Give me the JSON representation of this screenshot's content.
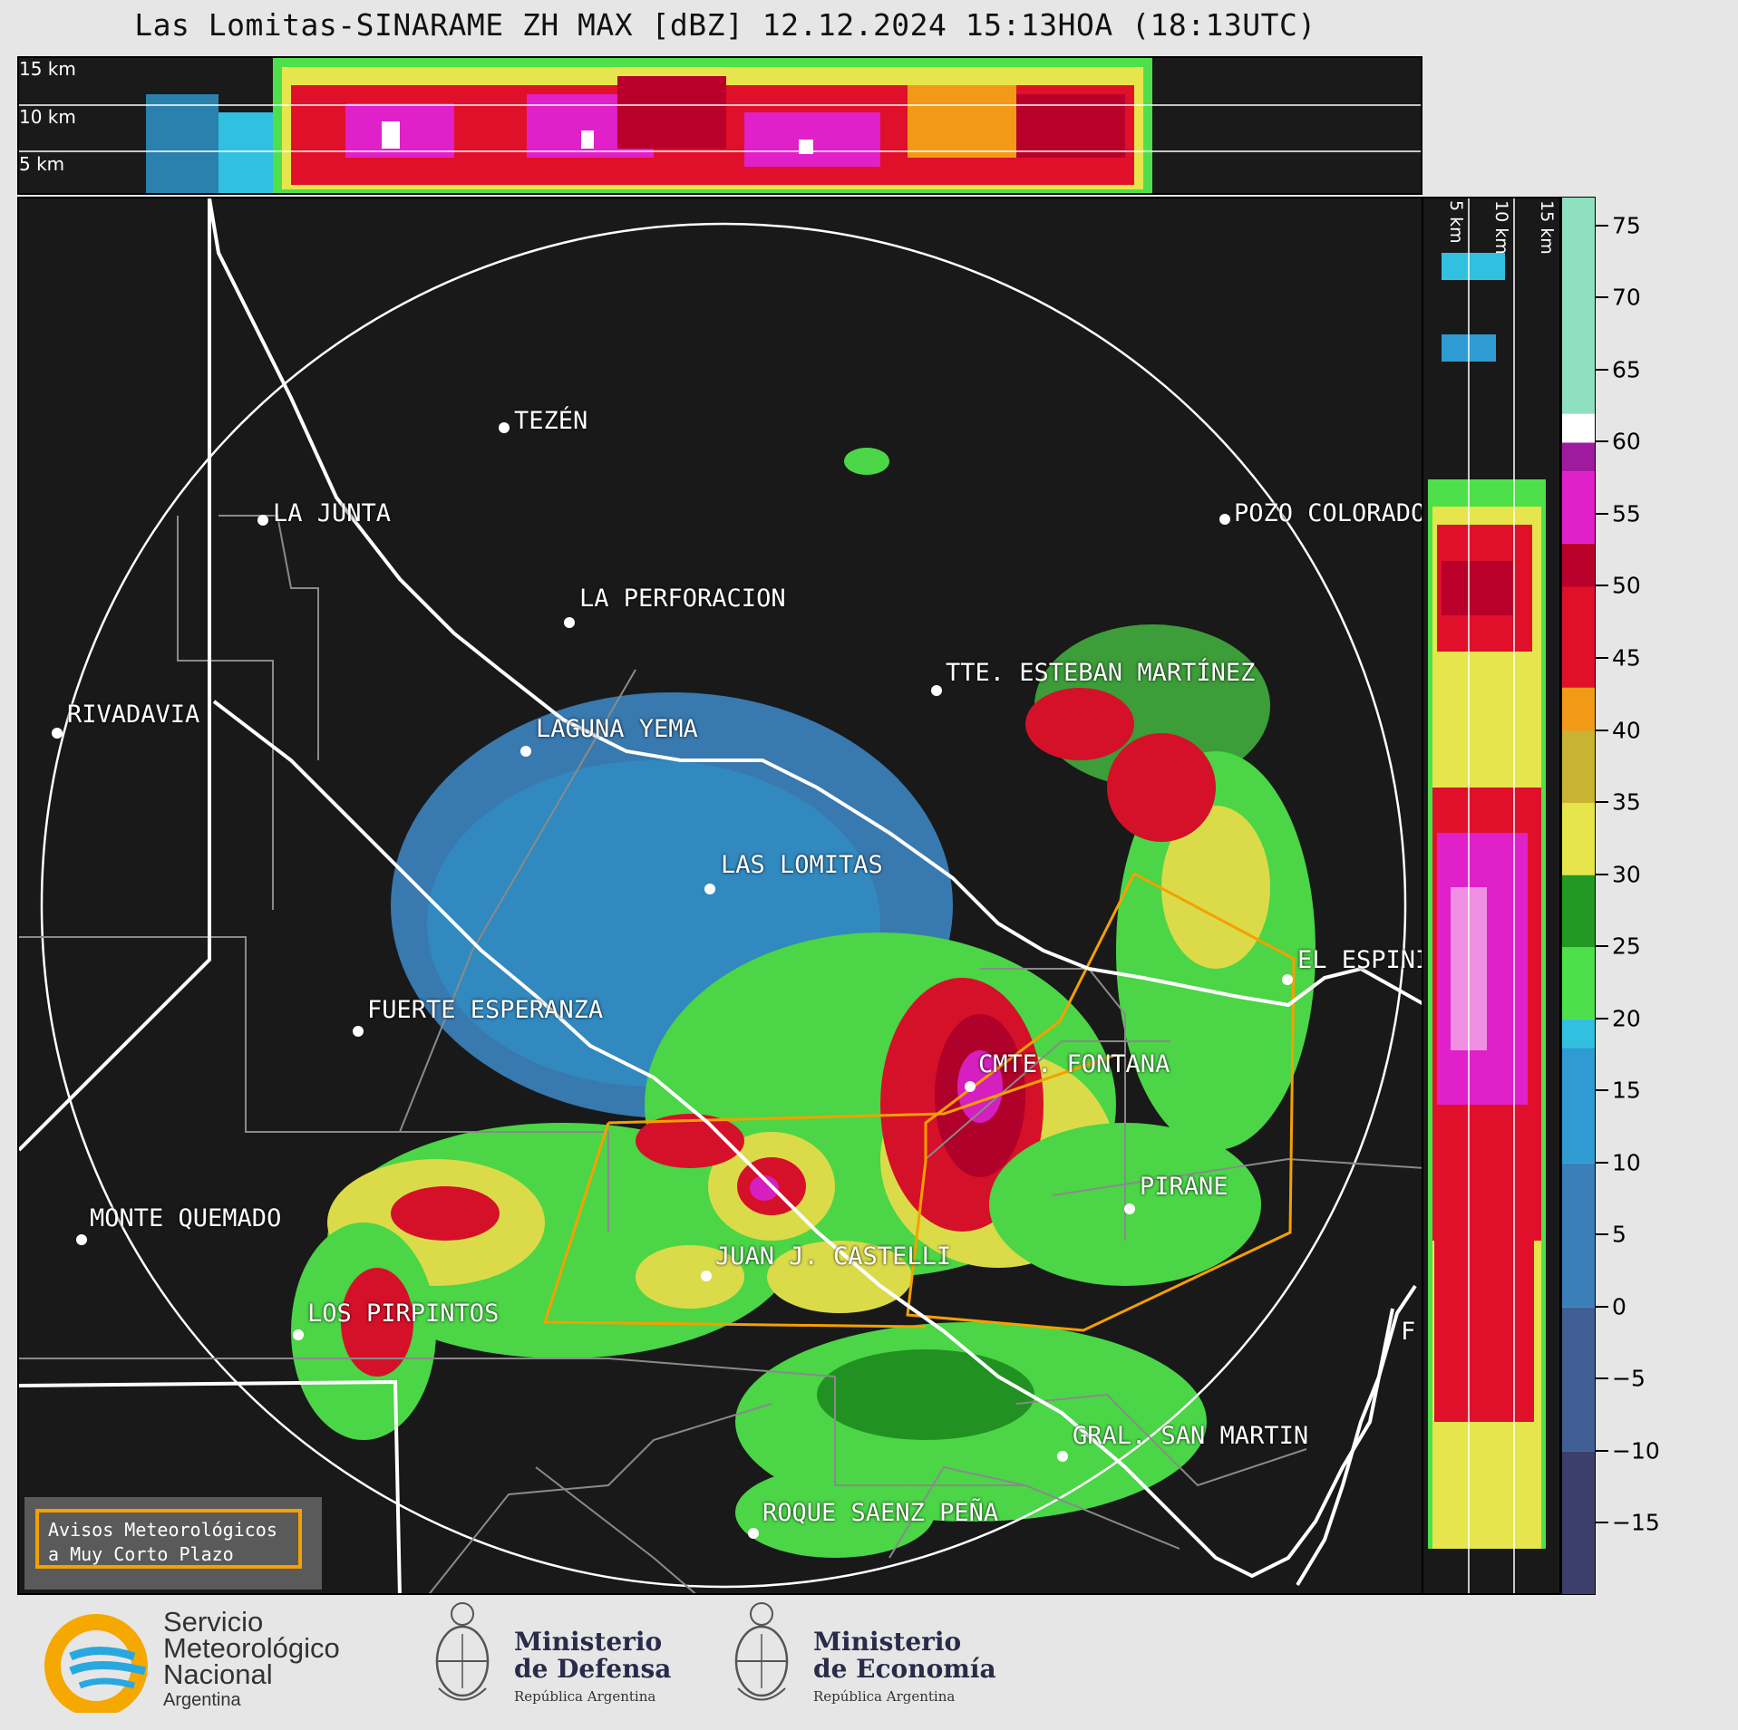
{
  "title": "Las Lomitas-SINARAME ZH MAX [dBZ] 12.12.2024 15:13HOA (18:13UTC)",
  "top_panel": {
    "height_labels": [
      "15 km",
      "10 km",
      "5 km"
    ]
  },
  "right_panel": {
    "height_labels": [
      "5 km",
      "10 km",
      "15 km"
    ]
  },
  "colorbar": {
    "unit": "dBZ",
    "ticks": [
      "75",
      "70",
      "65",
      "60",
      "55",
      "50",
      "45",
      "40",
      "35",
      "30",
      "25",
      "20",
      "15",
      "10",
      "5",
      "0",
      "−5",
      "−10",
      "−15"
    ],
    "tick_values": [
      75,
      70,
      65,
      60,
      55,
      50,
      45,
      40,
      35,
      30,
      25,
      20,
      15,
      10,
      5,
      0,
      -5,
      -10,
      -15
    ],
    "range": [
      -20,
      77
    ],
    "stops": [
      {
        "from": -20,
        "to": -10,
        "color": "#3c3f6b"
      },
      {
        "from": -10,
        "to": 0,
        "color": "#3f5f95"
      },
      {
        "from": 0,
        "to": 10,
        "color": "#3a7fb8"
      },
      {
        "from": 10,
        "to": 18,
        "color": "#2e9bd2"
      },
      {
        "from": 18,
        "to": 20,
        "color": "#32c0e0"
      },
      {
        "from": 20,
        "to": 25,
        "color": "#4ee04a"
      },
      {
        "from": 25,
        "to": 30,
        "color": "#229922"
      },
      {
        "from": 30,
        "to": 35,
        "color": "#e6e64c"
      },
      {
        "from": 35,
        "to": 40,
        "color": "#c8b432"
      },
      {
        "from": 40,
        "to": 43,
        "color": "#f29a18"
      },
      {
        "from": 43,
        "to": 50,
        "color": "#e0102a"
      },
      {
        "from": 50,
        "to": 53,
        "color": "#b8002a"
      },
      {
        "from": 53,
        "to": 58,
        "color": "#e020c8"
      },
      {
        "from": 58,
        "to": 60,
        "color": "#a01aa0"
      },
      {
        "from": 60,
        "to": 62,
        "color": "#ffffff"
      },
      {
        "from": 62,
        "to": 77,
        "color": "#8ee0c0"
      }
    ]
  },
  "cities": [
    {
      "name": "TEZÉN"
    },
    {
      "name": "LA JUNTA"
    },
    {
      "name": "POZO COLORADO"
    },
    {
      "name": "LA PERFORACION"
    },
    {
      "name": "TTE. ESTEBAN MARTÍNEZ"
    },
    {
      "name": "RIVADAVIA"
    },
    {
      "name": "LAGUNA YEMA"
    },
    {
      "name": "LAS LOMITAS"
    },
    {
      "name": "EL ESPINILLO"
    },
    {
      "name": "FUERTE ESPERANZA"
    },
    {
      "name": "CMTE. FONTANA"
    },
    {
      "name": "PIRANE"
    },
    {
      "name": "MONTE QUEMADO"
    },
    {
      "name": "JUAN J. CASTELLI"
    },
    {
      "name": "LOS PIRPINTOS"
    },
    {
      "name": "GRAL. SAN MARTIN"
    },
    {
      "name": "ROQUE SAENZ PEÑA"
    },
    {
      "name": "F"
    }
  ],
  "avisos": {
    "line1": "Avisos Meteorológicos",
    "line2": "a Muy Corto Plazo"
  },
  "footer": {
    "smn": {
      "line1": "Servicio",
      "line2": "Meteorológico",
      "line3": "Nacional",
      "line4": "Argentina"
    },
    "defensa": {
      "line1": "Ministerio",
      "line2": "de Defensa",
      "line3": "República Argentina"
    },
    "economia": {
      "line1": "Ministerio",
      "line2": "de Economía",
      "line3": "República Argentina"
    }
  }
}
